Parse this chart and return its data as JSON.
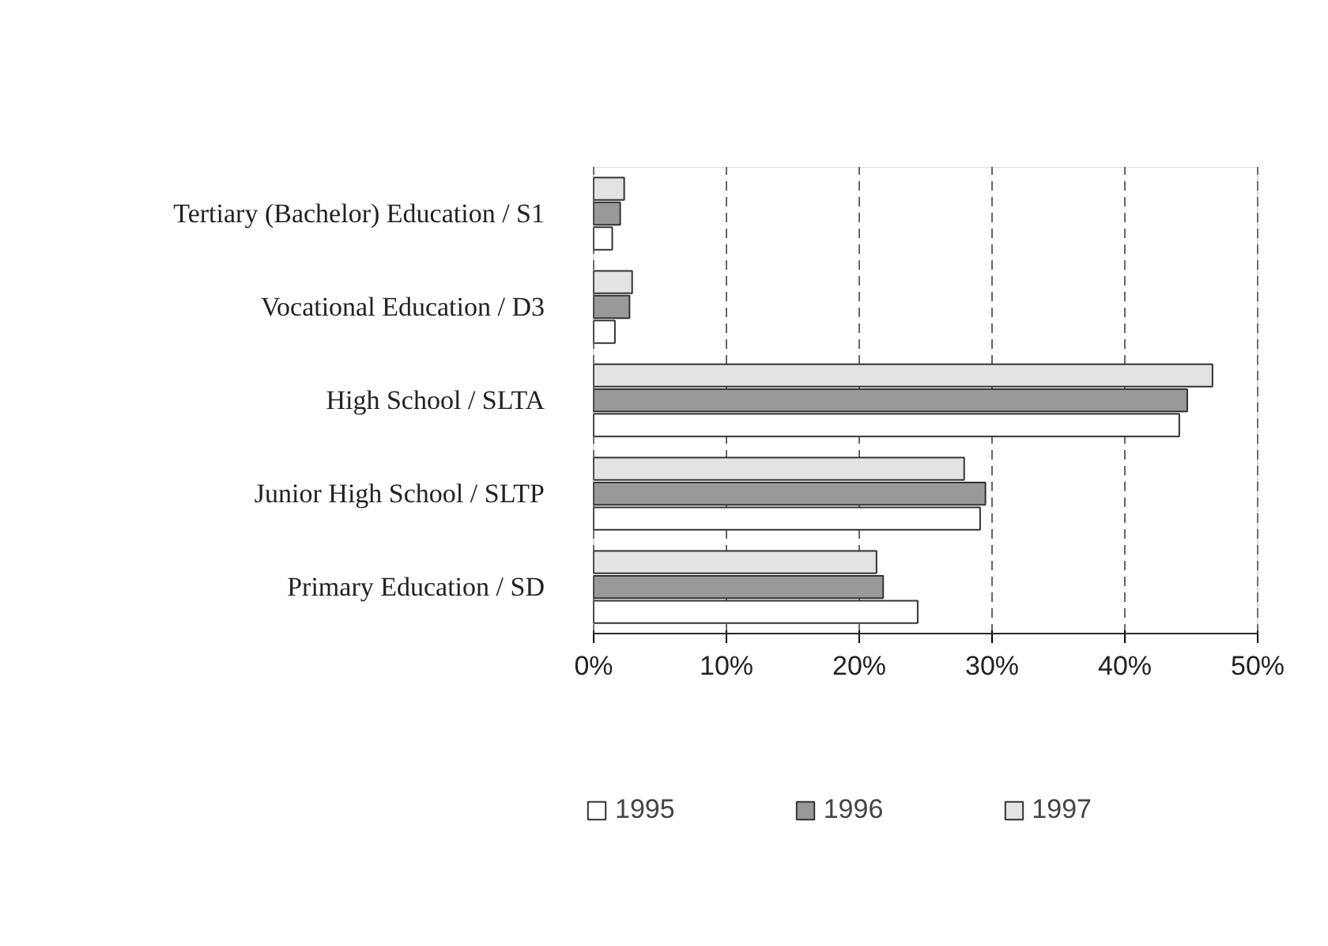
{
  "chart_data": {
    "type": "bar",
    "orientation": "horizontal",
    "categories": [
      "Tertiary (Bachelor) Education / S1",
      "Vocational Education / D3",
      "High School / SLTA",
      "Junior High School / SLTP",
      "Primary Education / SD"
    ],
    "series": [
      {
        "name": "1995",
        "color": "#ffffff",
        "values": [
          1.4,
          1.6,
          44.1,
          29.1,
          24.4
        ]
      },
      {
        "name": "1996",
        "color": "#999999",
        "values": [
          2.0,
          2.7,
          44.7,
          29.5,
          21.8
        ]
      },
      {
        "name": "1997",
        "color": "#e3e3e3",
        "values": [
          2.3,
          2.9,
          46.6,
          27.9,
          21.3
        ]
      }
    ],
    "xlim": [
      0,
      50
    ],
    "xticks": [
      {
        "value": 0,
        "label": "0%"
      },
      {
        "value": 10,
        "label": "10%"
      },
      {
        "value": 20,
        "label": "20%"
      },
      {
        "value": 30,
        "label": "30%"
      },
      {
        "value": 40,
        "label": "40%"
      },
      {
        "value": 50,
        "label": "50%"
      }
    ],
    "grid": "x",
    "legend": "bottom"
  }
}
